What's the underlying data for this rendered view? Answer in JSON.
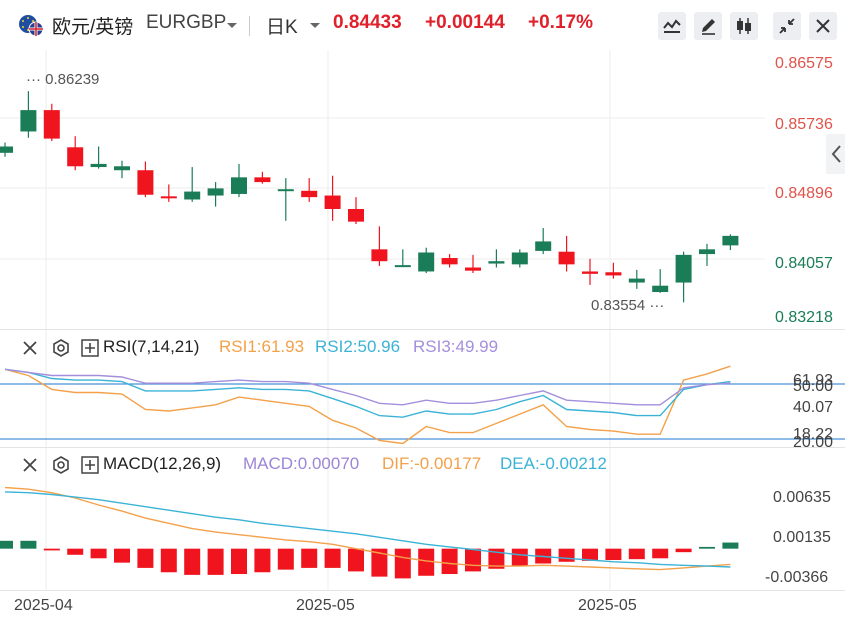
{
  "header": {
    "pair_name": "欧元/英镑",
    "symbol": "EURGBP",
    "period": "日K",
    "price": "0.84433",
    "change": "+0.00144",
    "change_pct": "+0.17%",
    "icons": [
      "line-chart-icon",
      "pencil-icon",
      "candlestick-icon",
      "shrink-icon",
      "close-icon"
    ]
  },
  "colors": {
    "up": "#1a7d57",
    "down": "#f0141e",
    "rsi1": "#f3a14a",
    "rsi2": "#3bb3d6",
    "rsi3": "#a38fdc",
    "macd": "#9c86d6",
    "dif": "#f3a14a",
    "dea": "#3bb3d6",
    "price_axis": "#e0534a",
    "price_axis_low": "#1a7d57"
  },
  "rsi_panel": {
    "title": "RSI(7,14,21)",
    "rsi1": "RSI1:61.93",
    "rsi2": "RSI2:50.96",
    "rsi3": "RSI3:49.99",
    "ticks": [
      "61.93",
      "50.00",
      "40.07",
      "18.22",
      "20.00"
    ]
  },
  "macd_panel": {
    "title": "MACD(12,26,9)",
    "macd": "MACD:0.00070",
    "dif": "DIF:-0.00177",
    "dea": "DEA:-0.00212",
    "ticks": [
      "0.00635",
      "0.00135",
      "-0.00366"
    ]
  },
  "chart_data": [
    {
      "type": "candlestick",
      "y_ticks": [
        "0.86575",
        "0.85736",
        "0.84896",
        "0.84057",
        "0.83218"
      ],
      "ylim": [
        0.8322,
        0.8676
      ],
      "x_ticks": [
        "2025-04",
        "2025-05",
        "2025-05"
      ],
      "high_label": "0.86239",
      "low_label": "0.83554",
      "candles": [
        {
          "o": 0.8546,
          "c": 0.8554,
          "h": 0.8559,
          "l": 0.8541
        },
        {
          "o": 0.8573,
          "c": 0.86,
          "h": 0.8624,
          "l": 0.8565
        },
        {
          "o": 0.86,
          "c": 0.8564,
          "h": 0.8608,
          "l": 0.8561
        },
        {
          "o": 0.8553,
          "c": 0.8529,
          "h": 0.8567,
          "l": 0.8524
        },
        {
          "o": 0.8528,
          "c": 0.8532,
          "h": 0.8554,
          "l": 0.8526
        },
        {
          "o": 0.8524,
          "c": 0.8529,
          "h": 0.8536,
          "l": 0.8514
        },
        {
          "o": 0.8524,
          "c": 0.8493,
          "h": 0.8535,
          "l": 0.849
        },
        {
          "o": 0.8491,
          "c": 0.849,
          "h": 0.8506,
          "l": 0.8484
        },
        {
          "o": 0.8487,
          "c": 0.8497,
          "h": 0.8528,
          "l": 0.8484
        },
        {
          "o": 0.8492,
          "c": 0.8501,
          "h": 0.8509,
          "l": 0.8478
        },
        {
          "o": 0.8494,
          "c": 0.8515,
          "h": 0.8532,
          "l": 0.849
        },
        {
          "o": 0.8515,
          "c": 0.8509,
          "h": 0.8522,
          "l": 0.8507
        },
        {
          "o": 0.8499,
          "c": 0.85,
          "h": 0.8514,
          "l": 0.846
        },
        {
          "o": 0.8498,
          "c": 0.849,
          "h": 0.8514,
          "l": 0.8484
        },
        {
          "o": 0.8492,
          "c": 0.8475,
          "h": 0.8517,
          "l": 0.846
        },
        {
          "o": 0.8475,
          "c": 0.8459,
          "h": 0.849,
          "l": 0.8456
        },
        {
          "o": 0.8424,
          "c": 0.8409,
          "h": 0.8453,
          "l": 0.8403
        },
        {
          "o": 0.8403,
          "c": 0.8404,
          "h": 0.8424,
          "l": 0.8402
        },
        {
          "o": 0.8396,
          "c": 0.842,
          "h": 0.8426,
          "l": 0.8394
        },
        {
          "o": 0.8413,
          "c": 0.8405,
          "h": 0.8418,
          "l": 0.8401
        },
        {
          "o": 0.8401,
          "c": 0.8397,
          "h": 0.8417,
          "l": 0.8394
        },
        {
          "o": 0.8406,
          "c": 0.8409,
          "h": 0.8424,
          "l": 0.8401
        },
        {
          "o": 0.8405,
          "c": 0.842,
          "h": 0.8424,
          "l": 0.8401
        },
        {
          "o": 0.8422,
          "c": 0.8434,
          "h": 0.8451,
          "l": 0.8418
        },
        {
          "o": 0.8421,
          "c": 0.8405,
          "h": 0.8441,
          "l": 0.8396
        },
        {
          "o": 0.8396,
          "c": 0.8393,
          "h": 0.8412,
          "l": 0.8379
        },
        {
          "o": 0.8395,
          "c": 0.8391,
          "h": 0.8407,
          "l": 0.8387
        },
        {
          "o": 0.8382,
          "c": 0.8387,
          "h": 0.8398,
          "l": 0.8374
        },
        {
          "o": 0.837,
          "c": 0.8378,
          "h": 0.8399,
          "l": 0.8369
        },
        {
          "o": 0.8382,
          "c": 0.8417,
          "h": 0.8421,
          "l": 0.8357
        },
        {
          "o": 0.8418,
          "c": 0.8424,
          "h": 0.8431,
          "l": 0.8403
        },
        {
          "o": 0.8429,
          "c": 0.8441,
          "h": 0.8443,
          "l": 0.8423
        }
      ]
    },
    {
      "type": "line",
      "title": "RSI(7,14,21)",
      "ylim": [
        10,
        65
      ],
      "series": [
        {
          "name": "RSI1",
          "values": [
            59,
            55,
            46,
            44,
            44,
            43,
            33,
            32,
            34,
            36,
            41,
            39,
            37,
            35,
            26,
            21,
            13,
            11,
            22,
            18,
            18,
            24,
            30,
            36,
            22,
            20,
            19,
            17,
            17,
            52,
            56,
            61
          ]
        },
        {
          "name": "RSI2",
          "values": [
            59,
            57,
            53,
            52,
            52,
            51,
            45,
            45,
            45,
            46,
            47,
            46,
            46,
            45,
            40,
            35,
            29,
            28,
            32,
            30,
            30,
            33,
            38,
            42,
            33,
            32,
            31,
            29,
            29,
            46,
            49,
            51
          ]
        },
        {
          "name": "RSI3",
          "values": [
            59,
            57,
            55,
            55,
            55,
            54,
            50,
            50,
            50,
            51,
            52,
            51,
            51,
            50,
            46,
            42,
            37,
            36,
            39,
            37,
            37,
            39,
            42,
            45,
            39,
            38,
            37,
            36,
            36,
            47,
            49,
            50
          ]
        }
      ]
    },
    {
      "type": "bar",
      "title": "MACD(12,26,9)",
      "ylim": [
        -0.0045,
        0.009
      ],
      "series": [
        {
          "name": "MACD",
          "values": [
            0.0009,
            0.0009,
            -0.0002,
            -0.0007,
            -0.0011,
            -0.0016,
            -0.0022,
            -0.0027,
            -0.003,
            -0.003,
            -0.0029,
            -0.0027,
            -0.0024,
            -0.0022,
            -0.0022,
            -0.0026,
            -0.0032,
            -0.0034,
            -0.0031,
            -0.0029,
            -0.0026,
            -0.0023,
            -0.002,
            -0.0017,
            -0.0015,
            -0.0014,
            -0.0013,
            -0.0012,
            -0.0011,
            -0.0004,
            0.0002,
            0.0007
          ]
        },
        {
          "name": "DIF",
          "values": [
            0.007,
            0.0068,
            0.0064,
            0.0058,
            0.005,
            0.0043,
            0.0035,
            0.0029,
            0.0023,
            0.0019,
            0.0016,
            0.0013,
            0.001,
            0.0008,
            0.0005,
            0.0,
            -0.0005,
            -0.001,
            -0.0014,
            -0.0017,
            -0.0019,
            -0.002,
            -0.002,
            -0.0019,
            -0.002,
            -0.0021,
            -0.0022,
            -0.0023,
            -0.0024,
            -0.0022,
            -0.002,
            -0.0018
          ]
        },
        {
          "name": "DEA",
          "values": [
            0.0065,
            0.0064,
            0.0062,
            0.0059,
            0.0056,
            0.0052,
            0.0048,
            0.0044,
            0.004,
            0.0036,
            0.0033,
            0.0029,
            0.0026,
            0.0023,
            0.002,
            0.0017,
            0.0013,
            0.0009,
            0.0005,
            0.0002,
            -0.0001,
            -0.0004,
            -0.0007,
            -0.0009,
            -0.0011,
            -0.0013,
            -0.0015,
            -0.0016,
            -0.0018,
            -0.0019,
            -0.002,
            -0.0021
          ]
        }
      ]
    }
  ]
}
